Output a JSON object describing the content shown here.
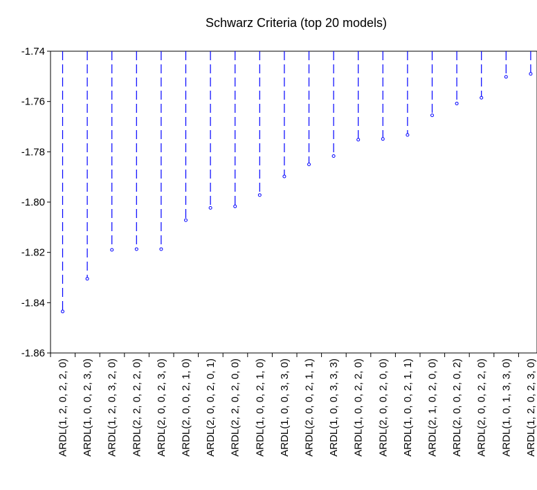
{
  "chart_data": {
    "type": "line",
    "title": "Schwarz Criteria (top 20 models)",
    "xlabel": "",
    "ylabel": "",
    "ylim": [
      -1.86,
      -1.74
    ],
    "yticks": [
      "-1.74",
      "-1.76",
      "-1.78",
      "-1.80",
      "-1.82",
      "-1.84",
      "-1.86"
    ],
    "ytick_values": [
      -1.74,
      -1.76,
      -1.78,
      -1.8,
      -1.82,
      -1.84,
      -1.86
    ],
    "grid": false,
    "categories": [
      "ARDL(1, 2, 0, 2, 2, 0)",
      "ARDL(1, 0, 0, 2, 3, 0)",
      "ARDL(1, 2, 0, 3, 2, 0)",
      "ARDL(2, 2, 0, 2, 2, 0)",
      "ARDL(2, 0, 0, 2, 3, 0)",
      "ARDL(2, 0, 0, 2, 1, 0)",
      "ARDL(2, 0, 0, 2, 0, 1)",
      "ARDL(2, 2, 0, 2, 0, 0)",
      "ARDL(1, 0, 0, 2, 1, 0)",
      "ARDL(1, 0, 0, 3, 3, 0)",
      "ARDL(2, 0, 0, 2, 1, 1)",
      "ARDL(1, 0, 0, 3, 3, 3)",
      "ARDL(1, 0, 0, 2, 2, 0)",
      "ARDL(2, 0, 0, 2, 0, 0)",
      "ARDL(1, 0, 0, 2, 1, 1)",
      "ARDL(2, 1, 0, 2, 0, 0)",
      "ARDL(2, 0, 0, 2, 0, 2)",
      "ARDL(2, 0, 0, 2, 2, 0)",
      "ARDL(1, 0, 1, 3, 3, 0)",
      "ARDL(1, 2, 0, 2, 3, 0)"
    ],
    "values": [
      -1.8435,
      -1.8305,
      -1.819,
      -1.8187,
      -1.8187,
      -1.8072,
      -1.8023,
      -1.8017,
      -1.7972,
      -1.7898,
      -1.785,
      -1.7817,
      -1.7752,
      -1.7749,
      -1.7733,
      -1.7655,
      -1.7608,
      -1.7585,
      -1.7502,
      -1.749
    ],
    "color": "#0000ff"
  }
}
